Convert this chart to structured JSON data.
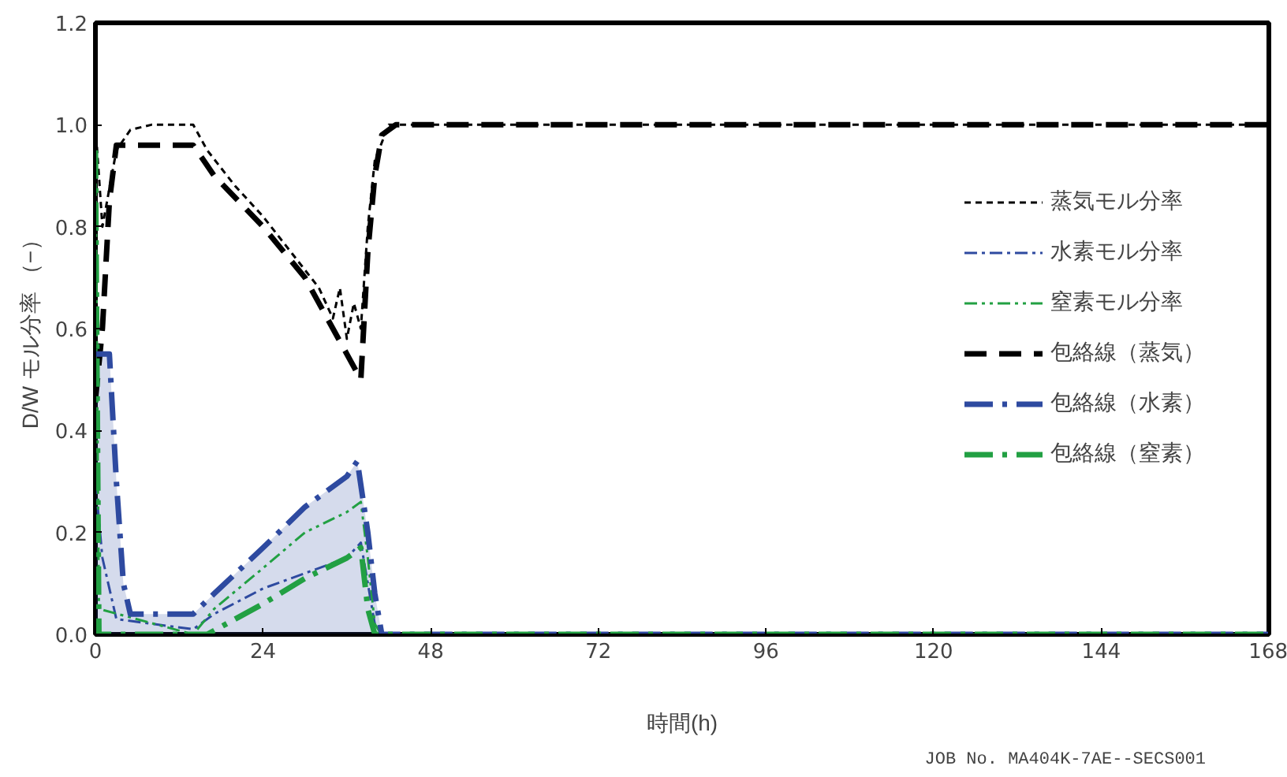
{
  "chart_data": {
    "type": "line",
    "xlabel": "時間(h)",
    "ylabel": "D/W モル分率 （−）",
    "annotations": [
      "JOB No. MA404K-7AE--SECS001"
    ],
    "xlim": [
      0,
      168
    ],
    "xticks": [
      0,
      24,
      48,
      72,
      96,
      120,
      144,
      168
    ],
    "ylim": [
      0,
      1.2
    ],
    "yticks": [
      {
        "value": 0,
        "label": "0.0"
      },
      {
        "value": 0.2,
        "label": "0.2"
      },
      {
        "value": 0.4,
        "label": "0.4"
      },
      {
        "value": 0.6,
        "label": "0.6"
      },
      {
        "value": 0.8,
        "label": "0.8"
      },
      {
        "value": 1.0,
        "label": "1.0"
      },
      {
        "value": 1.2,
        "label": "1.2"
      }
    ],
    "grid": false,
    "legend": "right",
    "marker": "none",
    "series": [
      {
        "name": "蒸気モル分率",
        "color": "#000000",
        "line_style": "dashed",
        "x": [
          0,
          1,
          3,
          5,
          8,
          14,
          16,
          20,
          24,
          28,
          32,
          34,
          35,
          36,
          37,
          38,
          39,
          40,
          42,
          168
        ],
        "values": [
          1.0,
          0.8,
          0.95,
          0.99,
          1.0,
          1.0,
          0.95,
          0.88,
          0.82,
          0.75,
          0.68,
          0.62,
          0.68,
          0.58,
          0.65,
          0.6,
          0.8,
          0.93,
          1.0,
          1.0
        ]
      },
      {
        "name": "水素モル分率",
        "color": "#2e4aa0",
        "line_style": "dashdot",
        "x": [
          0,
          1,
          3,
          14,
          17,
          24,
          30,
          36,
          38,
          39,
          40,
          41,
          168
        ],
        "values": [
          0.3,
          0.15,
          0.03,
          0.01,
          0.04,
          0.09,
          0.12,
          0.15,
          0.18,
          0.1,
          0.02,
          0,
          0
        ]
      },
      {
        "name": "窒素モル分率",
        "color": "#22a043",
        "line_style": "dashdotdot",
        "x": [
          0,
          0.5,
          14,
          17,
          24,
          30,
          36,
          38,
          39,
          40,
          41,
          168
        ],
        "values": [
          0.95,
          0.05,
          0,
          0.05,
          0.13,
          0.2,
          0.24,
          0.26,
          0.15,
          0.02,
          0,
          0
        ]
      },
      {
        "name": "包絡線（蒸気）",
        "color": "#000000",
        "line_style": "longdash",
        "x": [
          0,
          1,
          2,
          3,
          14,
          17,
          24,
          30,
          34,
          36,
          38,
          39,
          40,
          41,
          43,
          168
        ],
        "values": [
          0.46,
          0.6,
          0.85,
          0.96,
          0.96,
          0.9,
          0.8,
          0.7,
          0.6,
          0.55,
          0.5,
          0.75,
          0.9,
          0.98,
          1.0,
          1.0
        ]
      },
      {
        "name": "包絡線（水素）",
        "color": "#2e4aa0",
        "line_style": "longdashdot",
        "x": [
          0,
          2,
          3,
          4,
          5,
          14,
          17,
          24,
          30,
          36,
          37.5,
          39,
          40,
          41,
          168
        ],
        "values": [
          0.55,
          0.55,
          0.3,
          0.1,
          0.04,
          0.04,
          0.08,
          0.17,
          0.25,
          0.31,
          0.34,
          0.2,
          0.08,
          0,
          0
        ],
        "lower": [
          0,
          0,
          0,
          0,
          0,
          0,
          0,
          0,
          0,
          0,
          0,
          0,
          0,
          0,
          0
        ],
        "upper": [
          0.55,
          0.55,
          0.3,
          0.1,
          0.04,
          0.04,
          0.08,
          0.17,
          0.25,
          0.31,
          0.34,
          0.2,
          0.08,
          0,
          0
        ]
      },
      {
        "name": "包絡線（窒素）",
        "color": "#22a043",
        "line_style": "longdashdot",
        "x": [
          0,
          0.5,
          16,
          20,
          24,
          30,
          36,
          38,
          39,
          40,
          168
        ],
        "values": [
          0.95,
          0,
          0,
          0.03,
          0.06,
          0.11,
          0.15,
          0.17,
          0.05,
          0,
          0
        ]
      }
    ]
  }
}
